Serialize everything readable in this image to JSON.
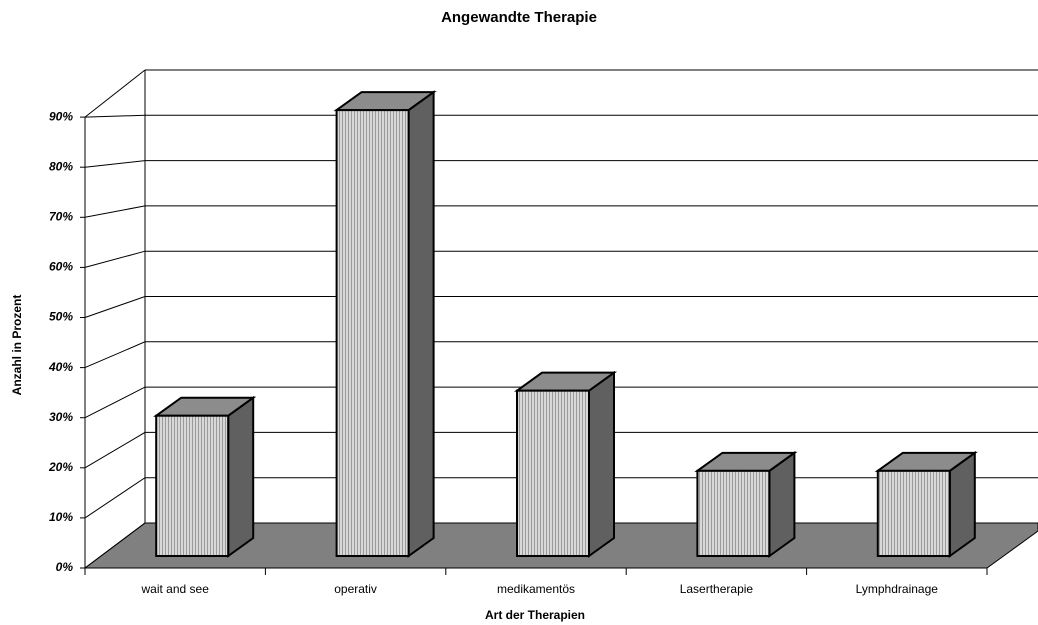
{
  "chart_data": {
    "type": "bar3d",
    "title": "Angewandte Therapie",
    "x_label": "Art der Therapien",
    "y_label": "Anzahl in Prozent",
    "categories": [
      "wait and see",
      "operativ",
      "medikamentös",
      "Lasertherapie",
      "Lymphdrainage"
    ],
    "values": [
      28,
      89,
      33,
      17,
      17
    ],
    "color": "#c8c8c8",
    "ylim": [
      0,
      100
    ],
    "yticks": [
      {
        "value": 0,
        "label": "0%"
      },
      {
        "value": 10,
        "label": "10%"
      },
      {
        "value": 20,
        "label": "20%"
      },
      {
        "value": 30,
        "label": "30%"
      },
      {
        "value": 40,
        "label": "40%"
      },
      {
        "value": 50,
        "label": "50%"
      },
      {
        "value": 60,
        "label": "60%"
      },
      {
        "value": 70,
        "label": "70%"
      },
      {
        "value": 80,
        "label": "80%"
      },
      {
        "value": 90,
        "label": "90%"
      }
    ],
    "grid": true
  }
}
